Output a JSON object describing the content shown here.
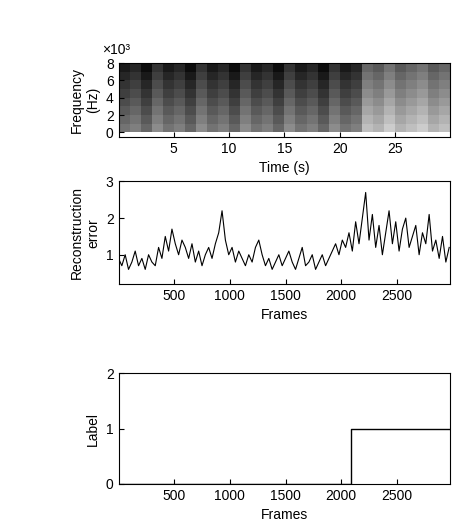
{
  "chart_data": [
    {
      "type": "heatmap",
      "y_label": "Frequency\n(Hz)",
      "x_label": "Time (s)",
      "annotations": [
        "×10³"
      ],
      "x": [
        0.5,
        1.5,
        2.5,
        3.5,
        4.5,
        5.5,
        6.5,
        7.5,
        8.5,
        9.5,
        10.5,
        11.5,
        12.5,
        13.5,
        14.5,
        15.5,
        16.5,
        17.5,
        18.5,
        19.5,
        20.5,
        21.5,
        22.5,
        23.5,
        24.5,
        25.5,
        26.5,
        27.5,
        28.5,
        29.5
      ],
      "y": [
        0.5,
        1.5,
        2.5,
        3.5,
        4.5,
        5.5,
        6.5,
        7.5
      ],
      "cells": [
        [
          0.55,
          0.5,
          0.6,
          0.45,
          0.55,
          0.5,
          0.6,
          0.45,
          0.55,
          0.5,
          0.6,
          0.45,
          0.55,
          0.5,
          0.6,
          0.45,
          0.55,
          0.5,
          0.6,
          0.45,
          0.55,
          0.5,
          0.25,
          0.3,
          0.2,
          0.3,
          0.25,
          0.2,
          0.3,
          0.25
        ],
        [
          0.6,
          0.55,
          0.65,
          0.5,
          0.6,
          0.55,
          0.65,
          0.5,
          0.6,
          0.55,
          0.65,
          0.5,
          0.6,
          0.55,
          0.65,
          0.5,
          0.6,
          0.55,
          0.65,
          0.5,
          0.6,
          0.55,
          0.3,
          0.35,
          0.25,
          0.35,
          0.3,
          0.25,
          0.35,
          0.3
        ],
        [
          0.65,
          0.6,
          0.7,
          0.55,
          0.65,
          0.6,
          0.7,
          0.55,
          0.65,
          0.6,
          0.7,
          0.55,
          0.65,
          0.6,
          0.7,
          0.55,
          0.65,
          0.6,
          0.7,
          0.55,
          0.65,
          0.6,
          0.35,
          0.4,
          0.3,
          0.4,
          0.35,
          0.3,
          0.4,
          0.35
        ],
        [
          0.7,
          0.65,
          0.75,
          0.6,
          0.7,
          0.65,
          0.75,
          0.6,
          0.7,
          0.65,
          0.75,
          0.6,
          0.7,
          0.65,
          0.75,
          0.6,
          0.7,
          0.65,
          0.75,
          0.6,
          0.7,
          0.65,
          0.4,
          0.45,
          0.35,
          0.45,
          0.4,
          0.35,
          0.45,
          0.4
        ],
        [
          0.75,
          0.7,
          0.8,
          0.65,
          0.75,
          0.7,
          0.8,
          0.65,
          0.75,
          0.7,
          0.8,
          0.65,
          0.75,
          0.7,
          0.8,
          0.65,
          0.75,
          0.7,
          0.8,
          0.65,
          0.75,
          0.7,
          0.45,
          0.5,
          0.4,
          0.5,
          0.45,
          0.4,
          0.5,
          0.45
        ],
        [
          0.8,
          0.75,
          0.85,
          0.7,
          0.8,
          0.75,
          0.85,
          0.7,
          0.8,
          0.75,
          0.85,
          0.7,
          0.8,
          0.75,
          0.85,
          0.7,
          0.8,
          0.75,
          0.85,
          0.7,
          0.8,
          0.75,
          0.5,
          0.55,
          0.45,
          0.55,
          0.5,
          0.45,
          0.55,
          0.5
        ],
        [
          0.85,
          0.8,
          0.9,
          0.75,
          0.85,
          0.8,
          0.9,
          0.75,
          0.85,
          0.8,
          0.9,
          0.75,
          0.85,
          0.8,
          0.9,
          0.75,
          0.85,
          0.8,
          0.9,
          0.75,
          0.85,
          0.8,
          0.55,
          0.6,
          0.5,
          0.6,
          0.55,
          0.5,
          0.6,
          0.55
        ],
        [
          0.9,
          0.85,
          0.95,
          0.8,
          0.9,
          0.85,
          0.95,
          0.8,
          0.9,
          0.85,
          0.95,
          0.8,
          0.9,
          0.85,
          0.95,
          0.8,
          0.9,
          0.85,
          0.95,
          0.8,
          0.9,
          0.85,
          0.6,
          0.65,
          0.55,
          0.65,
          0.6,
          0.55,
          0.65,
          0.6
        ]
      ],
      "value_range": [
        0,
        1
      ],
      "xlim": [
        0,
        30
      ],
      "xticks": [
        5,
        10,
        15,
        20,
        25
      ],
      "ylim": [
        -0.5,
        8
      ],
      "yticks": [
        0,
        2,
        4,
        6,
        8
      ]
    },
    {
      "type": "line",
      "color": "#000000",
      "y_label": "Reconstruction\nerror",
      "x_label": "Frames",
      "x": [
        0,
        30,
        60,
        90,
        120,
        150,
        180,
        210,
        240,
        270,
        300,
        330,
        360,
        390,
        420,
        450,
        480,
        510,
        540,
        570,
        600,
        630,
        660,
        690,
        720,
        750,
        780,
        810,
        840,
        870,
        900,
        930,
        960,
        990,
        1020,
        1050,
        1080,
        1110,
        1140,
        1170,
        1200,
        1230,
        1260,
        1290,
        1320,
        1350,
        1380,
        1410,
        1440,
        1470,
        1500,
        1530,
        1560,
        1590,
        1620,
        1650,
        1680,
        1710,
        1740,
        1770,
        1800,
        1830,
        1860,
        1890,
        1920,
        1950,
        1980,
        2010,
        2040,
        2070,
        2100,
        2130,
        2160,
        2190,
        2220,
        2250,
        2280,
        2310,
        2340,
        2370,
        2400,
        2430,
        2460,
        2490,
        2520,
        2550,
        2580,
        2610,
        2640,
        2670,
        2700,
        2730,
        2760,
        2790,
        2820,
        2850,
        2880,
        2910,
        2940,
        2970
      ],
      "values": [
        0.9,
        0.7,
        1.0,
        0.6,
        0.8,
        1.1,
        0.7,
        0.9,
        0.6,
        1.0,
        0.8,
        0.7,
        1.2,
        0.9,
        1.5,
        1.1,
        1.7,
        1.3,
        1.0,
        1.4,
        1.2,
        0.9,
        1.3,
        0.8,
        1.1,
        0.7,
        1.0,
        1.2,
        0.9,
        1.3,
        1.6,
        2.2,
        1.4,
        1.0,
        1.2,
        0.8,
        1.1,
        0.9,
        0.7,
        1.0,
        0.8,
        1.2,
        1.4,
        1.0,
        0.7,
        0.9,
        0.6,
        0.8,
        1.0,
        0.7,
        0.9,
        1.1,
        0.8,
        0.6,
        0.9,
        1.2,
        0.7,
        0.8,
        1.0,
        0.6,
        0.8,
        1.0,
        0.7,
        0.9,
        1.1,
        1.3,
        1.0,
        1.4,
        1.2,
        1.6,
        1.1,
        1.9,
        1.3,
        2.0,
        2.7,
        1.4,
        2.1,
        1.2,
        1.8,
        1.0,
        1.6,
        2.2,
        1.3,
        1.9,
        1.1,
        1.7,
        2.0,
        1.2,
        1.5,
        1.8,
        1.0,
        1.6,
        1.3,
        2.1,
        1.1,
        1.4,
        0.9,
        1.5,
        0.8,
        1.2
      ],
      "xlim": [
        0,
        2980
      ],
      "xticks": [
        500,
        1000,
        1500,
        2000,
        2500
      ],
      "ylim": [
        0.2,
        3
      ],
      "yticks": [
        1,
        2,
        3
      ]
    },
    {
      "type": "step",
      "color": "#000000",
      "y_label": "Label",
      "x_label": "Frames",
      "x": [
        0,
        2090,
        2980
      ],
      "values": [
        0,
        1,
        1
      ],
      "xlim": [
        0,
        2980
      ],
      "xticks": [
        500,
        1000,
        1500,
        2000,
        2500
      ],
      "ylim": [
        0,
        2
      ],
      "yticks": [
        0,
        1,
        2
      ]
    }
  ]
}
